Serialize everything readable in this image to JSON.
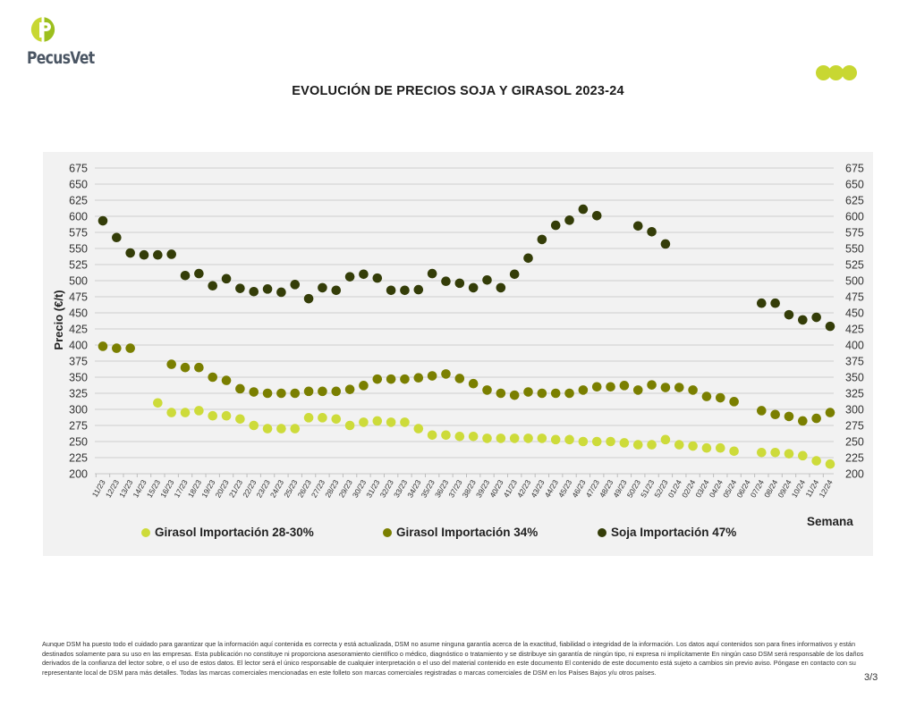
{
  "brand": {
    "name": "PecusVet",
    "logo_icon": "pecusvet-p-logo-icon",
    "decor_icon": "three-dots-icon",
    "accent_color": "#c8d732"
  },
  "page": {
    "title": "EVOLUCIÓN DE PRECIOS SOJA Y GIRASOL 2023-24",
    "page_number": "3/3"
  },
  "disclaimer": "Aunque DSM ha puesto todo el cuidado para garantizar que la información aquí contenida es correcta y está actualizada, DSM no asume ninguna garantía acerca de la exactitud, fiabilidad o integridad de la información. Los datos aquí contenidos son para fines informativos y están destinados solamente para su uso en las empresas. Esta publicación no constituye ni proporciona asesoramiento científico o médico, diagnóstico o tratamiento y se distribuye sin garantía de ningún tipo, ni expresa ni implícitamente En ningún caso DSM será responsable de los daños derivados de la confianza del lector sobre, o el uso de estos datos. El lector será el único responsable de cualquier interpretación o el uso del material contenido en este documento El contenido de este documento está sujeto a cambios sin previo aviso. Póngase en contacto con su representante local de DSM para más detalles. Todas las marcas comerciales mencionadas en este folleto son marcas comerciales registradas o marcas comerciales de DSM en los Países Bajos y/u otros países.",
  "chart_data": {
    "type": "scatter",
    "title": "EVOLUCIÓN DE PRECIOS SOJA Y GIRASOL 2023-24",
    "xlabel": "Semana",
    "ylabel": "Precio (€/t)",
    "ylim": [
      200,
      675
    ],
    "ytick_step": 25,
    "yticks": [
      200,
      225,
      250,
      275,
      300,
      325,
      350,
      375,
      400,
      425,
      450,
      475,
      500,
      525,
      550,
      575,
      600,
      625,
      650,
      675
    ],
    "secondary_y_axis": true,
    "grid": "horizontal",
    "legend_position": "bottom",
    "categories": [
      "11/23",
      "12/23",
      "13/23",
      "14/23",
      "15/23",
      "16/23",
      "17/23",
      "18/23",
      "19/23",
      "20/23",
      "21/23",
      "22/23",
      "23/23",
      "24/23",
      "25/23",
      "26/23",
      "27/23",
      "28/23",
      "29/23",
      "30/23",
      "31/23",
      "32/23",
      "33/23",
      "34/23",
      "35/23",
      "36/23",
      "37/23",
      "38/23",
      "39/23",
      "40/23",
      "41/23",
      "42/23",
      "43/23",
      "44/23",
      "45/23",
      "46/23",
      "47/23",
      "48/23",
      "49/23",
      "50/23",
      "51/23",
      "52/23",
      "01/24",
      "02/24",
      "03/24",
      "04/24",
      "05/24",
      "06/24",
      "07/24",
      "08/24",
      "09/24",
      "10/24",
      "11/24",
      "12/24"
    ],
    "series": [
      {
        "name": "Girasol Importación 28-30%",
        "color": "#cddb3a",
        "values": [
          null,
          null,
          null,
          null,
          310,
          295,
          295,
          298,
          290,
          290,
          285,
          275,
          270,
          270,
          270,
          287,
          287,
          285,
          275,
          280,
          282,
          280,
          280,
          270,
          260,
          260,
          258,
          258,
          255,
          255,
          255,
          255,
          255,
          253,
          253,
          250,
          250,
          250,
          248,
          245,
          245,
          253,
          245,
          243,
          240,
          240,
          235,
          null,
          233,
          233,
          231,
          228,
          220,
          215
        ]
      },
      {
        "name": "Girasol Importación 34%",
        "color": "#7a7f00",
        "values": [
          398,
          395,
          395,
          null,
          null,
          370,
          365,
          365,
          350,
          345,
          332,
          327,
          325,
          325,
          325,
          328,
          328,
          328,
          331,
          337,
          347,
          347,
          347,
          349,
          352,
          355,
          348,
          340,
          330,
          325,
          322,
          327,
          325,
          325,
          325,
          330,
          335,
          335,
          337,
          330,
          338,
          334,
          334,
          330,
          320,
          318,
          312,
          null,
          298,
          292,
          289,
          282,
          286,
          295
        ]
      },
      {
        "name": "Soja Importación 47%",
        "color": "#343d08",
        "values": [
          593,
          567,
          543,
          540,
          540,
          541,
          508,
          511,
          492,
          503,
          488,
          483,
          487,
          482,
          494,
          472,
          489,
          485,
          506,
          510,
          504,
          485,
          485,
          486,
          511,
          499,
          496,
          489,
          501,
          489,
          510,
          535,
          564,
          586,
          594,
          611,
          601,
          null,
          null,
          585,
          576,
          557,
          null,
          null,
          null,
          null,
          null,
          null,
          465,
          465,
          447,
          439,
          443,
          429
        ]
      }
    ]
  }
}
